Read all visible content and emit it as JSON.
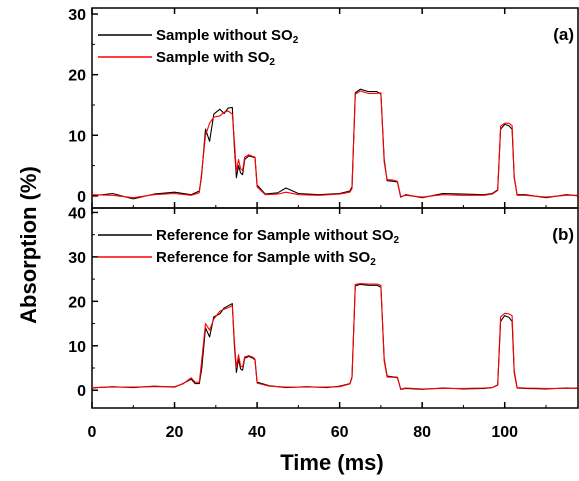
{
  "chart_data": {
    "type": "line",
    "xlabel": "Time (ms)",
    "ylabel": "Absorption (%)",
    "xlim": [
      0,
      118
    ],
    "x_ticks": [
      0,
      20,
      40,
      60,
      80,
      100
    ],
    "x_tick_labels": [
      "0",
      "20",
      "40",
      "60",
      "80",
      "100"
    ],
    "colors": {
      "black_series": "#000000",
      "red_series": "#ff0000"
    },
    "grid": false,
    "legend_placement": "top-left",
    "panels": [
      {
        "label": "(a)",
        "ylim": [
          -2,
          31
        ],
        "y_ticks": [
          0,
          10,
          20,
          30
        ],
        "y_tick_labels": [
          "0",
          "10",
          "20",
          "30"
        ],
        "series": [
          {
            "name": "Sample without SO2",
            "legend_main": "Sample without SO",
            "legend_sub": "2",
            "color": "#000000",
            "x": [
              0,
              5,
              10,
              15,
              20,
              24,
              26,
              26.5,
              27.5,
              28.5,
              29.5,
              31,
              32,
              33,
              34,
              34.5,
              35,
              35.5,
              36,
              36.5,
              37,
              38,
              39,
              39.5,
              40,
              42,
              45,
              47,
              50,
              55,
              60,
              62.5,
              63,
              63.8,
              65,
              67,
              69,
              70,
              70.8,
              71.5,
              73,
              74,
              74.8,
              76,
              80,
              85,
              90,
              95,
              97,
              98.3,
              99,
              100,
              101,
              101.8,
              102.3,
              103,
              105,
              110,
              115,
              118
            ],
            "y": [
              0,
              0.4,
              -0.5,
              0.3,
              0.6,
              0.2,
              0.8,
              3,
              11,
              9,
              13.5,
              14.3,
              13.6,
              14.5,
              14.6,
              8,
              3,
              5,
              3.8,
              3.5,
              6,
              6.6,
              6.4,
              6.3,
              1.8,
              0.3,
              0.5,
              1.3,
              0.4,
              0.2,
              0.4,
              0.8,
              1.5,
              17,
              17.6,
              17.2,
              17.2,
              16.8,
              6,
              2.5,
              2.4,
              2.3,
              -0.2,
              0.2,
              -0.3,
              0.4,
              0.3,
              0.2,
              0.4,
              1,
              11,
              11.8,
              11.6,
              11,
              3,
              0.2,
              0.2,
              -0.3,
              0.2,
              0
            ]
          },
          {
            "name": "Sample with SO2",
            "legend_main": "Sample with SO",
            "legend_sub": "2",
            "color": "#ff0000",
            "x": [
              0,
              5,
              10,
              15,
              20,
              24,
              26,
              26.6,
              27.5,
              28.5,
              29.5,
              31,
              32,
              33,
              34,
              34.5,
              35,
              35.5,
              36,
              36.5,
              37,
              38,
              39,
              39.5,
              40,
              42,
              45,
              47,
              50,
              55,
              60,
              62.5,
              63,
              63.8,
              65,
              67,
              69,
              70,
              70.8,
              71.5,
              73,
              74,
              74.8,
              76,
              80,
              85,
              90,
              95,
              97,
              98.3,
              99,
              100,
              101,
              101.8,
              102.3,
              103,
              105,
              110,
              115,
              118
            ],
            "y": [
              0.2,
              0.1,
              -0.3,
              0.2,
              0.4,
              0.1,
              0.5,
              4,
              10,
              12,
              13,
              13.2,
              13.8,
              14,
              13.5,
              9,
              4,
              6,
              4.5,
              4.2,
              6.4,
              6.8,
              6.5,
              6.4,
              1.5,
              0.2,
              0.3,
              0.6,
              0.2,
              0.1,
              0.3,
              0.6,
              1.2,
              16.8,
              17.3,
              16.9,
              16.9,
              17,
              5.5,
              2.7,
              2.6,
              2.4,
              -0.1,
              0.1,
              -0.2,
              0.2,
              0.1,
              0.1,
              0.3,
              0.9,
              11.5,
              12,
              12,
              11.6,
              3.2,
              0.1,
              0.1,
              -0.2,
              0.1,
              0.1
            ]
          }
        ]
      },
      {
        "label": "(b)",
        "ylim": [
          -4,
          41
        ],
        "y_ticks": [
          0,
          10,
          20,
          30,
          40
        ],
        "y_tick_labels": [
          "0",
          "10",
          "20",
          "30",
          "40"
        ],
        "series": [
          {
            "name": "Reference for Sample without SO2",
            "legend_main": "Reference for Sample without SO",
            "legend_sub": "2",
            "color": "#000000",
            "x": [
              0,
              5,
              10,
              15,
              20,
              22,
              24,
              25,
              26,
              26.6,
              27.5,
              28.5,
              29.5,
              31,
              32,
              33,
              34,
              34.5,
              35,
              35.5,
              36,
              36.5,
              37,
              38,
              39,
              39.5,
              40,
              43,
              47,
              52,
              57,
              60,
              62.5,
              63,
              63.8,
              65,
              67,
              69,
              70,
              70.8,
              71.5,
              73,
              74,
              74.8,
              76,
              80,
              85,
              90,
              95,
              97,
              98.3,
              99,
              100,
              101,
              101.8,
              102.3,
              103,
              105,
              110,
              115,
              118
            ],
            "y": [
              0.5,
              0.8,
              0.6,
              0.9,
              0.7,
              1.5,
              2.5,
              1.5,
              1.5,
              5,
              14,
              12,
              16.5,
              17.2,
              18.5,
              19,
              19.5,
              10,
              4,
              7,
              4.8,
              4.5,
              7.2,
              7.6,
              7.2,
              6.8,
              1.8,
              1,
              0.6,
              0.8,
              0.6,
              0.9,
              1.5,
              3,
              23.5,
              23.8,
              23.6,
              23.6,
              23.2,
              7,
              3.2,
              3,
              2.9,
              0.2,
              0.4,
              0.2,
              0.5,
              0.3,
              0.4,
              0.6,
              1.2,
              15.5,
              16.8,
              16.4,
              15.5,
              4,
              0.5,
              0.4,
              0.3,
              0.5,
              0.4
            ]
          },
          {
            "name": "Reference for Sample with SO2",
            "legend_main": "Reference for Sample with SO",
            "legend_sub": "2",
            "color": "#ff0000",
            "x": [
              0,
              5,
              10,
              15,
              20,
              22,
              24,
              25,
              26,
              26.5,
              27.5,
              28.5,
              29.5,
              31,
              32,
              33,
              34,
              34.5,
              35,
              35.5,
              36,
              36.5,
              37,
              38,
              39,
              39.5,
              40,
              43,
              47,
              52,
              57,
              60,
              62.5,
              63,
              63.8,
              65,
              67,
              69,
              70,
              70.8,
              71.5,
              73,
              74,
              74.8,
              76,
              80,
              85,
              90,
              95,
              97,
              98.3,
              99,
              100,
              101,
              101.8,
              102.3,
              103,
              105,
              110,
              115,
              118
            ],
            "y": [
              0.6,
              0.7,
              0.7,
              0.8,
              0.8,
              1.4,
              2.8,
              1.8,
              1.8,
              6,
              15,
              13.5,
              16,
              17.8,
              18.2,
              18.6,
              19,
              11,
              5,
              8,
              5.5,
              5.2,
              7.5,
              7.8,
              7.4,
              7,
              1.6,
              0.9,
              0.7,
              0.7,
              0.7,
              0.8,
              1.4,
              2.8,
              23.8,
              24,
              23.9,
              23.9,
              23.6,
              6.5,
              3,
              2.9,
              2.8,
              0.3,
              0.5,
              0.3,
              0.4,
              0.4,
              0.5,
              0.6,
              1.1,
              16.5,
              17.3,
              17.2,
              16.8,
              4.5,
              0.6,
              0.5,
              0.4,
              0.4,
              0.5
            ]
          }
        ]
      }
    ]
  }
}
